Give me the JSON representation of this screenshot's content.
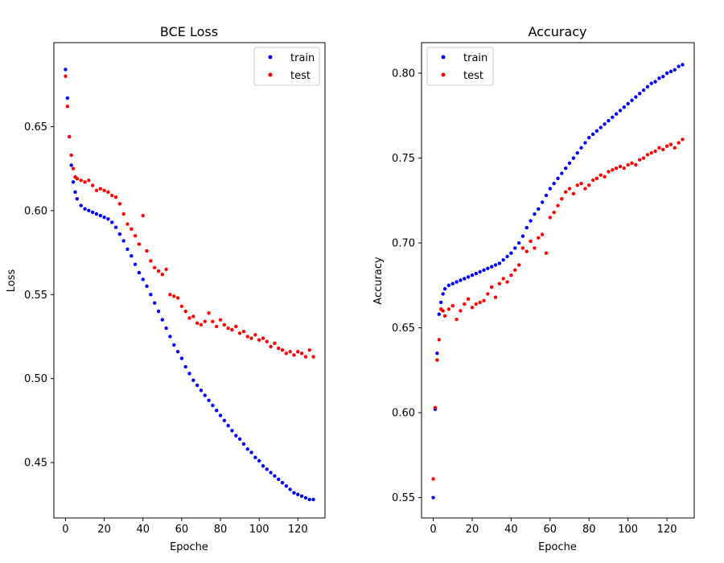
{
  "figure": {
    "colors": {
      "train": "#0000ff",
      "test": "#ff0000",
      "frame": "#000000",
      "legend_border": "#cccccc",
      "background": "#ffffff"
    }
  },
  "chart_data": [
    {
      "type": "scatter",
      "title": "BCE Loss",
      "xlabel": "Epoche",
      "ylabel": "Loss",
      "xlim": [
        -6,
        134
      ],
      "ylim": [
        0.417,
        0.7
      ],
      "xticks": [
        "0",
        "20",
        "40",
        "60",
        "80",
        "100",
        "120"
      ],
      "yticks": [
        "0.45",
        "0.50",
        "0.55",
        "0.60",
        "0.65"
      ],
      "grid": false,
      "legend_position": "top-right",
      "series": [
        {
          "name": "train",
          "color": "#0000ff",
          "x": [
            0,
            1,
            2,
            3,
            4,
            5,
            6,
            8,
            10,
            12,
            14,
            16,
            18,
            20,
            22,
            24,
            26,
            28,
            30,
            32,
            34,
            36,
            38,
            40,
            42,
            44,
            46,
            48,
            50,
            52,
            54,
            56,
            58,
            60,
            62,
            64,
            66,
            68,
            70,
            72,
            74,
            76,
            78,
            80,
            82,
            84,
            86,
            88,
            90,
            92,
            94,
            96,
            98,
            100,
            102,
            104,
            106,
            108,
            110,
            112,
            114,
            116,
            118,
            120,
            122,
            124,
            126,
            128
          ],
          "y": [
            0.684,
            0.667,
            0.644,
            0.627,
            0.617,
            0.611,
            0.607,
            0.603,
            0.601,
            0.6,
            0.599,
            0.598,
            0.597,
            0.596,
            0.595,
            0.593,
            0.59,
            0.586,
            0.582,
            0.577,
            0.573,
            0.568,
            0.563,
            0.559,
            0.555,
            0.55,
            0.545,
            0.54,
            0.535,
            0.53,
            0.525,
            0.52,
            0.516,
            0.512,
            0.507,
            0.503,
            0.499,
            0.496,
            0.493,
            0.49,
            0.487,
            0.484,
            0.481,
            0.478,
            0.475,
            0.472,
            0.469,
            0.466,
            0.464,
            0.461,
            0.458,
            0.456,
            0.453,
            0.451,
            0.448,
            0.446,
            0.444,
            0.442,
            0.44,
            0.438,
            0.436,
            0.434,
            0.432,
            0.431,
            0.43,
            0.429,
            0.428,
            0.428
          ]
        },
        {
          "name": "test",
          "color": "#ff0000",
          "x": [
            0,
            1,
            2,
            3,
            4,
            5,
            6,
            8,
            10,
            12,
            14,
            16,
            18,
            20,
            22,
            24,
            26,
            28,
            30,
            32,
            34,
            36,
            38,
            40,
            42,
            44,
            46,
            48,
            50,
            52,
            54,
            56,
            58,
            60,
            62,
            64,
            66,
            68,
            70,
            72,
            74,
            76,
            78,
            80,
            82,
            84,
            86,
            88,
            90,
            92,
            94,
            96,
            98,
            100,
            102,
            104,
            106,
            108,
            110,
            112,
            114,
            116,
            118,
            120,
            122,
            124,
            126,
            128
          ],
          "y": [
            0.68,
            0.662,
            0.644,
            0.633,
            0.625,
            0.62,
            0.619,
            0.618,
            0.617,
            0.618,
            0.615,
            0.612,
            0.613,
            0.612,
            0.611,
            0.609,
            0.608,
            0.604,
            0.598,
            0.592,
            0.589,
            0.585,
            0.58,
            0.597,
            0.576,
            0.57,
            0.566,
            0.564,
            0.562,
            0.565,
            0.55,
            0.549,
            0.548,
            0.543,
            0.54,
            0.536,
            0.537,
            0.533,
            0.532,
            0.534,
            0.539,
            0.534,
            0.531,
            0.535,
            0.532,
            0.53,
            0.529,
            0.531,
            0.527,
            0.528,
            0.525,
            0.524,
            0.526,
            0.523,
            0.524,
            0.522,
            0.519,
            0.521,
            0.518,
            0.517,
            0.515,
            0.516,
            0.514,
            0.516,
            0.515,
            0.513,
            0.517,
            0.513
          ]
        }
      ]
    },
    {
      "type": "scatter",
      "title": "Accuracy",
      "xlabel": "Epoche",
      "ylabel": "Accuracy",
      "xlim": [
        -6,
        134
      ],
      "ylim": [
        0.538,
        0.818
      ],
      "xticks": [
        "0",
        "20",
        "40",
        "60",
        "80",
        "100",
        "120"
      ],
      "yticks": [
        "0.55",
        "0.60",
        "0.65",
        "0.70",
        "0.75",
        "0.80"
      ],
      "grid": false,
      "legend_position": "top-left",
      "series": [
        {
          "name": "train",
          "color": "#0000ff",
          "x": [
            0,
            1,
            2,
            3,
            4,
            5,
            6,
            8,
            10,
            12,
            14,
            16,
            18,
            20,
            22,
            24,
            26,
            28,
            30,
            32,
            34,
            36,
            38,
            40,
            42,
            44,
            46,
            48,
            50,
            52,
            54,
            56,
            58,
            60,
            62,
            64,
            66,
            68,
            70,
            72,
            74,
            76,
            78,
            80,
            82,
            84,
            86,
            88,
            90,
            92,
            94,
            96,
            98,
            100,
            102,
            104,
            106,
            108,
            110,
            112,
            114,
            116,
            118,
            120,
            122,
            124,
            126,
            128
          ],
          "y": [
            0.55,
            0.602,
            0.635,
            0.658,
            0.665,
            0.67,
            0.673,
            0.675,
            0.676,
            0.677,
            0.678,
            0.679,
            0.68,
            0.681,
            0.682,
            0.683,
            0.684,
            0.685,
            0.686,
            0.687,
            0.688,
            0.69,
            0.692,
            0.694,
            0.697,
            0.7,
            0.704,
            0.709,
            0.713,
            0.717,
            0.72,
            0.724,
            0.728,
            0.732,
            0.735,
            0.738,
            0.741,
            0.744,
            0.747,
            0.75,
            0.753,
            0.756,
            0.759,
            0.762,
            0.764,
            0.766,
            0.768,
            0.77,
            0.772,
            0.774,
            0.776,
            0.778,
            0.78,
            0.782,
            0.784,
            0.786,
            0.788,
            0.79,
            0.792,
            0.794,
            0.795,
            0.797,
            0.798,
            0.8,
            0.801,
            0.802,
            0.804,
            0.805
          ]
        },
        {
          "name": "test",
          "color": "#ff0000",
          "x": [
            0,
            1,
            2,
            3,
            4,
            5,
            6,
            8,
            10,
            12,
            14,
            16,
            18,
            20,
            22,
            24,
            26,
            28,
            30,
            32,
            34,
            36,
            38,
            40,
            42,
            44,
            46,
            48,
            50,
            52,
            54,
            56,
            58,
            60,
            62,
            64,
            66,
            68,
            70,
            72,
            74,
            76,
            78,
            80,
            82,
            84,
            86,
            88,
            90,
            92,
            94,
            96,
            98,
            100,
            102,
            104,
            106,
            108,
            110,
            112,
            114,
            116,
            118,
            120,
            122,
            124,
            126,
            128
          ],
          "y": [
            0.561,
            0.603,
            0.631,
            0.643,
            0.661,
            0.66,
            0.657,
            0.661,
            0.663,
            0.655,
            0.66,
            0.664,
            0.667,
            0.662,
            0.664,
            0.665,
            0.666,
            0.67,
            0.674,
            0.668,
            0.676,
            0.679,
            0.677,
            0.681,
            0.684,
            0.687,
            0.697,
            0.695,
            0.701,
            0.697,
            0.703,
            0.705,
            0.694,
            0.715,
            0.718,
            0.722,
            0.726,
            0.73,
            0.732,
            0.729,
            0.734,
            0.735,
            0.732,
            0.734,
            0.737,
            0.738,
            0.74,
            0.739,
            0.742,
            0.743,
            0.744,
            0.745,
            0.744,
            0.746,
            0.747,
            0.746,
            0.749,
            0.75,
            0.752,
            0.753,
            0.754,
            0.756,
            0.755,
            0.757,
            0.758,
            0.756,
            0.759,
            0.761
          ]
        }
      ]
    }
  ]
}
